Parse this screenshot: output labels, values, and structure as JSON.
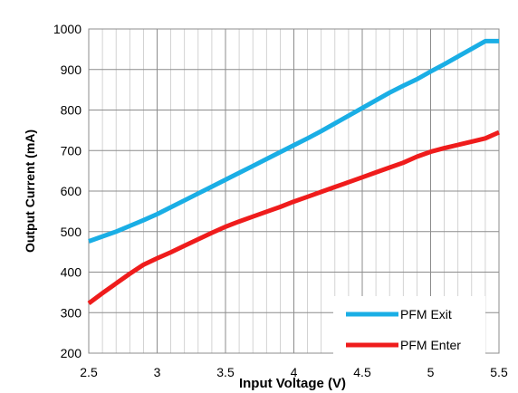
{
  "chart_data": {
    "type": "line",
    "xlabel": "Input Voltage (V)",
    "ylabel": "Output Current (mA)",
    "xlim": [
      2.5,
      5.5
    ],
    "ylim": [
      200,
      1000
    ],
    "x_ticks": [
      2.5,
      3,
      3.5,
      4,
      4.5,
      5,
      5.5
    ],
    "x_tick_labels": [
      "2.5",
      "3",
      "3.5",
      "4",
      "4.5",
      "5",
      "5.5"
    ],
    "y_ticks": [
      200,
      300,
      400,
      500,
      600,
      700,
      800,
      900,
      1000
    ],
    "y_tick_labels": [
      "200",
      "300",
      "400",
      "500",
      "600",
      "700",
      "800",
      "900",
      "1000"
    ],
    "x_minor_step": 0.1,
    "y_minor_step": 100,
    "grid": true,
    "legend_position": "bottom-right",
    "series": [
      {
        "name": "PFM Exit",
        "color": "#1aaee5",
        "x": [
          2.5,
          2.6,
          2.7,
          2.8,
          2.9,
          3.0,
          3.1,
          3.2,
          3.3,
          3.4,
          3.5,
          3.6,
          3.7,
          3.8,
          3.9,
          4.0,
          4.1,
          4.2,
          4.3,
          4.4,
          4.5,
          4.6,
          4.7,
          4.8,
          4.9,
          5.0,
          5.1,
          5.2,
          5.3,
          5.4,
          5.5
        ],
        "y": [
          476,
          488,
          500,
          514,
          528,
          543,
          560,
          577,
          594,
          611,
          628,
          645,
          662,
          679,
          696,
          713,
          730,
          748,
          767,
          786,
          805,
          824,
          843,
          860,
          876,
          895,
          913,
          932,
          951,
          970,
          970
        ]
      },
      {
        "name": "PFM Enter",
        "color": "#ef1c1c",
        "x": [
          2.5,
          2.6,
          2.7,
          2.8,
          2.9,
          3.0,
          3.1,
          3.2,
          3.3,
          3.4,
          3.5,
          3.6,
          3.7,
          3.8,
          3.9,
          4.0,
          4.1,
          4.2,
          4.3,
          4.4,
          4.5,
          4.6,
          4.7,
          4.8,
          4.9,
          5.0,
          5.1,
          5.2,
          5.3,
          5.4,
          5.5
        ],
        "y": [
          323,
          348,
          372,
          396,
          418,
          434,
          449,
          465,
          481,
          497,
          512,
          525,
          537,
          549,
          561,
          574,
          586,
          598,
          610,
          622,
          634,
          646,
          658,
          670,
          685,
          697,
          706,
          714,
          722,
          730,
          745
        ]
      }
    ]
  }
}
